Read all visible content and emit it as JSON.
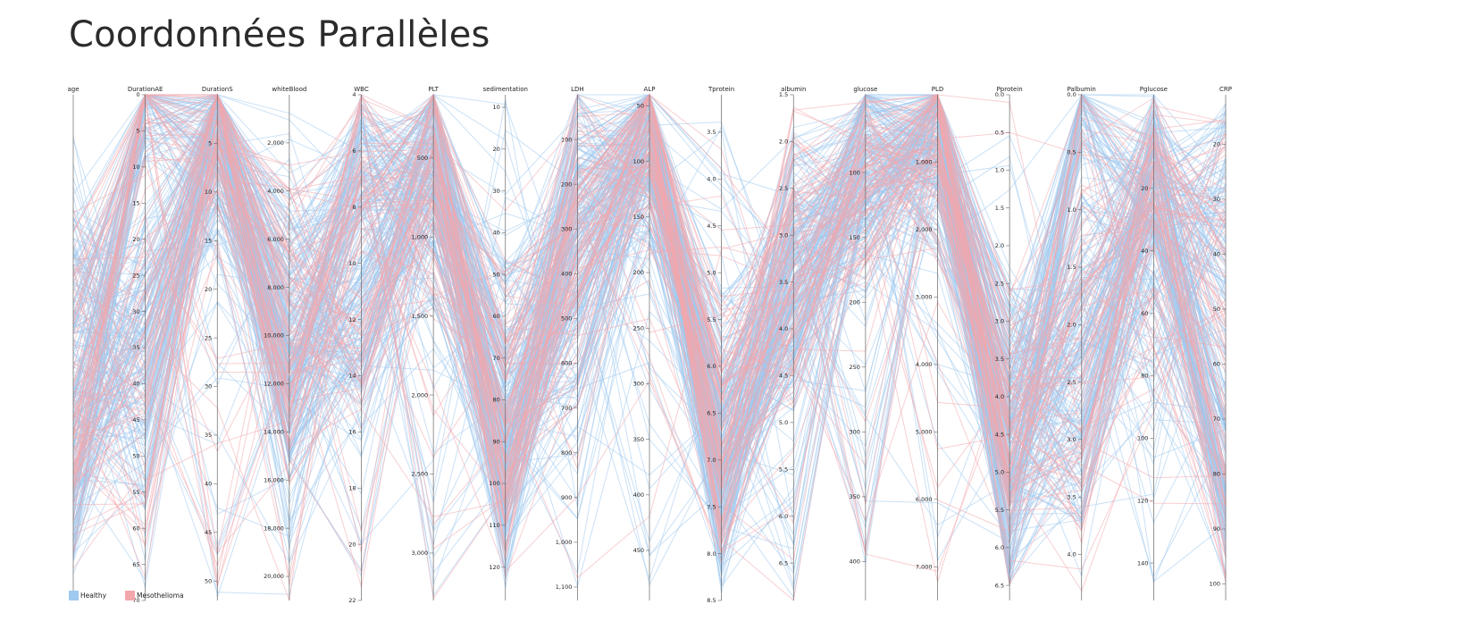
{
  "page": {
    "title": "Coordonnées Parallèles"
  },
  "colors": {
    "Healthy": "#9fc9ef",
    "Mesothelioma": "#f2a7ad",
    "axis": "#666666"
  },
  "chart_data": {
    "type": "parallel_coordinates",
    "title": "",
    "legend": {
      "position": "bottom-left",
      "entries": [
        "Healthy",
        "Mesothelioma"
      ]
    },
    "axes": [
      {
        "name": "age",
        "domain": [
          0,
          100
        ],
        "ticks": [],
        "tick_format": "plain"
      },
      {
        "name": "DurationAE",
        "domain": [
          0,
          70
        ],
        "ticks": [
          0,
          5,
          10,
          15,
          20,
          25,
          30,
          35,
          40,
          45,
          50,
          55,
          60,
          65,
          70
        ],
        "tick_format": "plain"
      },
      {
        "name": "DurationS",
        "domain": [
          0,
          52
        ],
        "ticks": [
          5,
          10,
          15,
          20,
          25,
          30,
          35,
          40,
          45,
          50
        ],
        "tick_format": "plain"
      },
      {
        "name": "whiteBlood",
        "domain": [
          0,
          21000
        ],
        "ticks": [
          2000,
          4000,
          6000,
          8000,
          10000,
          12000,
          14000,
          16000,
          18000,
          20000
        ],
        "tick_format": "comma"
      },
      {
        "name": "WBC",
        "domain": [
          4,
          22
        ],
        "ticks": [
          4,
          6,
          8,
          10,
          12,
          14,
          16,
          18,
          20,
          22
        ],
        "tick_format": "plain"
      },
      {
        "name": "PLT",
        "domain": [
          100,
          3300
        ],
        "ticks": [
          500,
          1000,
          1500,
          2000,
          2500,
          3000
        ],
        "tick_format": "comma"
      },
      {
        "name": "sedimentation",
        "domain": [
          7,
          128
        ],
        "ticks": [
          10,
          20,
          30,
          40,
          50,
          60,
          70,
          80,
          90,
          100,
          110,
          120
        ],
        "tick_format": "plain"
      },
      {
        "name": "LDH",
        "domain": [
          0,
          1130
        ],
        "ticks": [
          100,
          200,
          300,
          400,
          500,
          600,
          700,
          800,
          900,
          1000,
          1100
        ],
        "tick_format": "comma"
      },
      {
        "name": "ALP",
        "domain": [
          40,
          495
        ],
        "ticks": [
          50,
          100,
          150,
          200,
          250,
          300,
          350,
          400,
          450
        ],
        "tick_format": "plain"
      },
      {
        "name": "Tprotein",
        "domain": [
          3.1,
          8.5
        ],
        "ticks": [
          3.5,
          4.0,
          4.5,
          5.0,
          5.5,
          6.0,
          6.5,
          7.0,
          7.5,
          8.0,
          8.5
        ],
        "tick_format": "fixed1"
      },
      {
        "name": "albumin",
        "domain": [
          1.5,
          6.9
        ],
        "ticks": [
          1.5,
          2.0,
          2.5,
          3.0,
          3.5,
          4.0,
          4.5,
          5.0,
          5.5,
          6.0,
          6.5
        ],
        "tick_format": "fixed1"
      },
      {
        "name": "glucose",
        "domain": [
          40,
          430
        ],
        "ticks": [
          100,
          150,
          200,
          250,
          300,
          350,
          400
        ],
        "tick_format": "plain"
      },
      {
        "name": "PLD",
        "domain": [
          0,
          7500
        ],
        "ticks": [
          1000,
          2000,
          3000,
          4000,
          5000,
          6000,
          7000
        ],
        "tick_format": "comma"
      },
      {
        "name": "Pprotein",
        "domain": [
          0,
          6.7
        ],
        "ticks": [
          0.0,
          0.5,
          1.0,
          1.5,
          2.0,
          2.5,
          3.0,
          3.5,
          4.0,
          4.5,
          5.0,
          5.5,
          6.0,
          6.5
        ],
        "tick_format": "fixed1"
      },
      {
        "name": "Palbumin",
        "domain": [
          0,
          4.4
        ],
        "ticks": [
          0.0,
          0.5,
          1.0,
          1.5,
          2.0,
          2.5,
          3.0,
          3.5,
          4.0
        ],
        "tick_format": "fixed1"
      },
      {
        "name": "Pglucose",
        "domain": [
          -10,
          152
        ],
        "ticks": [
          20,
          40,
          60,
          80,
          100,
          120,
          140
        ],
        "tick_format": "plain"
      },
      {
        "name": "CRP",
        "domain": [
          11,
          103
        ],
        "ticks": [
          20,
          30,
          40,
          50,
          60,
          70,
          80,
          90,
          100
        ],
        "tick_format": "plain"
      }
    ],
    "series": [
      {
        "name": "Healthy",
        "count": 228
      },
      {
        "name": "Mesothelioma",
        "count": 96
      }
    ]
  }
}
